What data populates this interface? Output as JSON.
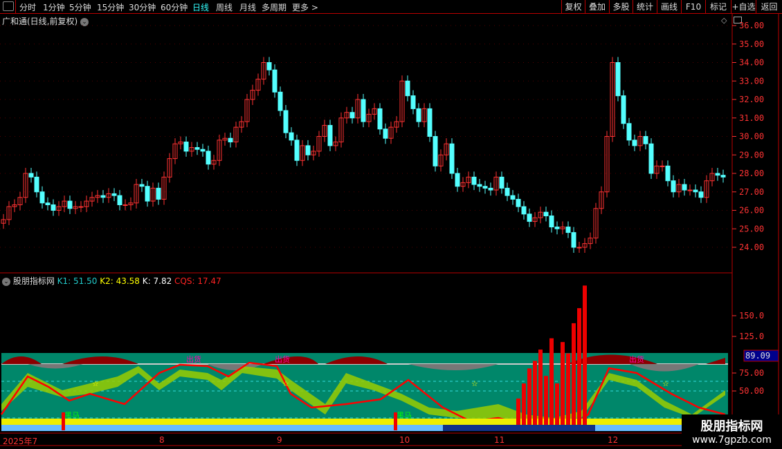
{
  "toolbar": {
    "periods": [
      "分时",
      "1分钟",
      "5分钟",
      "15分钟",
      "30分钟",
      "60分钟",
      "日线",
      "周线",
      "月线",
      "多周期",
      "更多 >"
    ],
    "active": "日线",
    "right_buttons": [
      "复权",
      "叠加",
      "多股",
      "统计",
      "画线",
      "F10",
      "标记",
      "+自选",
      "返回"
    ]
  },
  "chart": {
    "title": "广和通(日线,前复权)",
    "price_ticks": [
      "36.00",
      "35.00",
      "34.00",
      "33.00",
      "32.00",
      "31.00",
      "30.00",
      "29.00",
      "28.00",
      "27.00",
      "26.00",
      "25.00",
      "24.00"
    ],
    "closes": [
      25.5,
      26.2,
      26.3,
      26.7,
      28.0,
      27.8,
      27.0,
      26.4,
      26.3,
      26.0,
      26.2,
      26.5,
      26.1,
      26.2,
      26.2,
      26.5,
      26.7,
      26.8,
      26.7,
      26.9,
      26.8,
      26.3,
      26.3,
      26.4,
      27.4,
      27.3,
      26.5,
      27.2,
      26.6,
      27.8,
      28.8,
      29.6,
      29.7,
      29.2,
      29.4,
      29.3,
      29.2,
      28.5,
      28.7,
      29.8,
      29.9,
      29.7,
      30.5,
      30.8,
      32.0,
      32.5,
      33.1,
      34.0,
      33.6,
      32.4,
      31.4,
      30.2,
      29.8,
      28.7,
      29.5,
      29.0,
      29.2,
      30.0,
      30.6,
      29.5,
      29.7,
      31.0,
      31.3,
      31.0,
      32.0,
      30.8,
      31.2,
      31.5,
      30.4,
      29.9,
      30.5,
      30.8,
      33.0,
      32.2,
      31.5,
      30.8,
      31.5,
      30.0,
      28.4,
      29.0,
      29.6,
      28.0,
      27.3,
      27.5,
      27.8,
      27.4,
      27.3,
      27.2,
      27.1,
      27.8,
      27.2,
      26.8,
      26.6,
      26.2,
      25.8,
      25.4,
      25.6,
      25.9,
      25.7,
      25.1,
      25.0,
      25.1,
      24.8,
      24.0,
      24.0,
      24.2,
      24.5,
      26.1,
      27.0,
      30.0,
      34.0,
      32.2,
      30.7,
      29.8,
      29.5,
      30.0,
      29.6,
      28.0,
      28.4,
      28.4,
      27.6,
      27.0,
      27.4,
      27.1,
      27.1,
      27.0,
      26.7,
      27.6,
      28.0,
      27.9,
      27.8
    ],
    "up_color": "#ff3232",
    "down_color": "#54ffff"
  },
  "indicator": {
    "name": "股朋指标网",
    "k1_label": "K1: 51.50",
    "k2_label": "K2: 43.58",
    "k_label": "K: 7.82",
    "cqs_label": "CQS: 17.47",
    "ticks": [
      "150.0",
      "125.0",
      "75.00",
      "50.00"
    ],
    "current_value": "89.09",
    "signals": [
      {
        "text": "出货",
        "x_day": 33
      },
      {
        "text": "出货",
        "x_day": 49
      },
      {
        "text": "出货",
        "x_day": 113
      },
      {
        "text": "黑马",
        "x_day": 11
      },
      {
        "text": "黑马",
        "x_day": 71
      }
    ],
    "bars": [
      {
        "day": 93,
        "v": 40
      },
      {
        "day": 94,
        "v": 60
      },
      {
        "day": 95,
        "v": 80
      },
      {
        "day": 96,
        "v": 90
      },
      {
        "day": 97,
        "v": 105
      },
      {
        "day": 98,
        "v": 70
      },
      {
        "day": 99,
        "v": 120
      },
      {
        "day": 100,
        "v": 60
      },
      {
        "day": 101,
        "v": 115
      },
      {
        "day": 102,
        "v": 100
      },
      {
        "day": 103,
        "v": 140
      },
      {
        "day": 104,
        "v": 160
      },
      {
        "day": 105,
        "v": 190
      }
    ]
  },
  "date_axis": [
    "2025年7",
    "8",
    "9",
    "10",
    "11",
    "12"
  ],
  "watermark": {
    "name": "股朋指标网",
    "url": "www.7gpzb.com"
  }
}
